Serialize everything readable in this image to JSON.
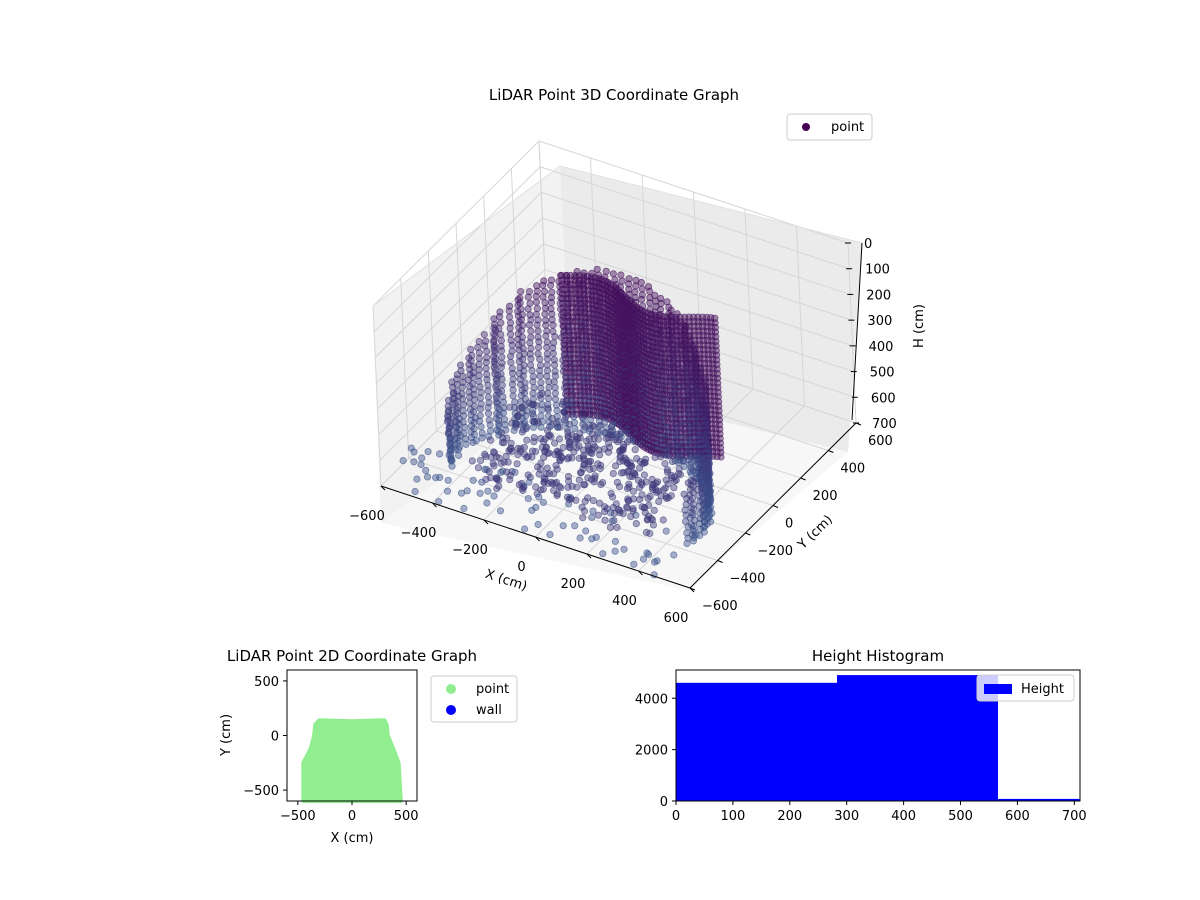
{
  "charts": [
    {
      "type": "scatter3d",
      "title": "LiDAR Point 3D Coordinate Graph",
      "xlabel": "X (cm)",
      "ylabel": "Y (cm)",
      "zlabel": "H (cm)",
      "x_ticks": [
        "−600",
        "−400",
        "−200",
        "0",
        "200",
        "400",
        "600"
      ],
      "y_ticks": [
        "−600",
        "−400",
        "−200",
        "0",
        "200",
        "400",
        "600"
      ],
      "z_ticks": [
        "0",
        "100",
        "200",
        "300",
        "400",
        "500",
        "600",
        "700"
      ],
      "xlim": [
        -600,
        600
      ],
      "ylim": [
        -600,
        600
      ],
      "zlim": [
        0,
        700
      ],
      "z_inverted": true,
      "legend": [
        {
          "name": "point",
          "color": "#440154"
        }
      ],
      "legend_position": "upper-right",
      "series": [
        {
          "name": "point",
          "description": "curved wall of points at ~500 cm ring plus sparse floor points",
          "wall_radius_x": 500,
          "wall_radius_y": 500,
          "wall_y_range": [
            -600,
            150
          ],
          "height_range": [
            0,
            700
          ],
          "colormap_start": "#440154",
          "colormap_end": "#3b528b"
        }
      ]
    },
    {
      "type": "scatter",
      "title": "LiDAR Point 2D Coordinate Graph",
      "xlabel": "X (cm)",
      "ylabel": "Y (cm)",
      "x_ticks": [
        "−500",
        "0",
        "500"
      ],
      "y_ticks": [
        "−500",
        "0",
        "500"
      ],
      "xlim": [
        -600,
        600
      ],
      "ylim": [
        -600,
        600
      ],
      "legend": [
        {
          "name": "point",
          "color": "#90ee90"
        },
        {
          "name": "wall",
          "color": "#0000ff"
        }
      ],
      "legend_position": "outside-right",
      "series": [
        {
          "name": "point",
          "color": "#90ee90",
          "shape_outline": [
            [
              -450,
              -600
            ],
            [
              -450,
              -250
            ],
            [
              -380,
              -120
            ],
            [
              -350,
              0
            ],
            [
              -340,
              100
            ],
            [
              -300,
              140
            ],
            [
              0,
              130
            ],
            [
              300,
              140
            ],
            [
              320,
              100
            ],
            [
              330,
              0
            ],
            [
              380,
              -120
            ],
            [
              430,
              -250
            ],
            [
              450,
              -600
            ]
          ]
        },
        {
          "name": "wall",
          "color": "#0000ff",
          "points": []
        }
      ]
    },
    {
      "type": "histogram",
      "title": "Height Histogram",
      "x_ticks": [
        "0",
        "100",
        "200",
        "300",
        "400",
        "500",
        "600",
        "700"
      ],
      "y_ticks": [
        "0",
        "2000",
        "4000"
      ],
      "xlim": [
        0,
        710
      ],
      "ylim": [
        0,
        5100
      ],
      "legend": [
        {
          "name": "Height",
          "color": "#0000ff"
        }
      ],
      "legend_position": "upper-right",
      "bins": [
        {
          "x0": 0,
          "x1": 283,
          "count": 4600
        },
        {
          "x0": 283,
          "x1": 566,
          "count": 4900
        },
        {
          "x0": 566,
          "x1": 710,
          "count": 80
        }
      ],
      "bar_color": "#0000ff"
    }
  ]
}
